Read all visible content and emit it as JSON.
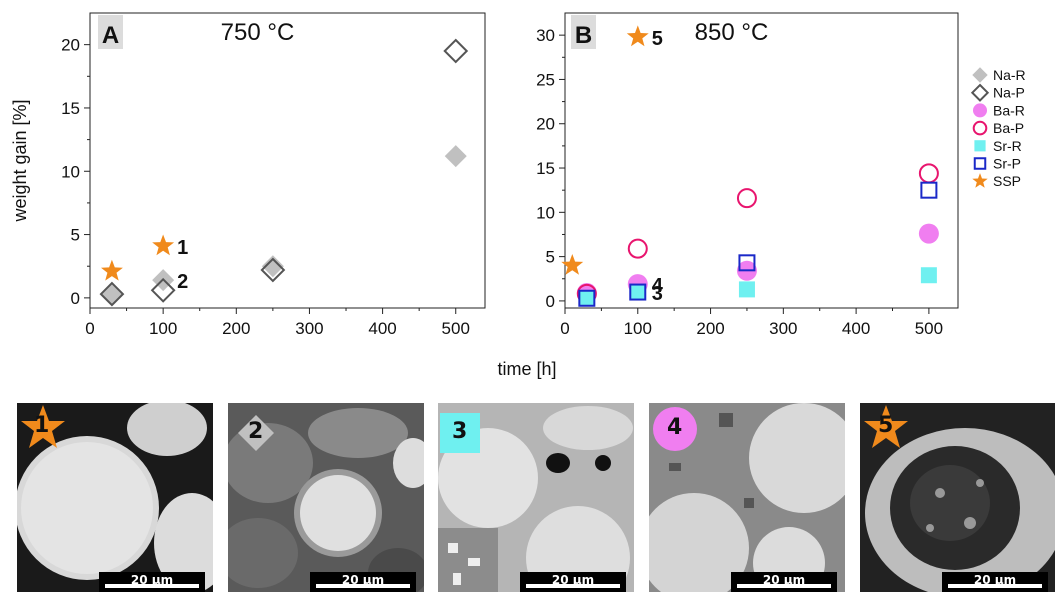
{
  "chart_data": [
    {
      "type": "scatter",
      "panel": "A",
      "title": "750 °C",
      "ylabel": "weight gain [%]",
      "xlim": [
        0,
        540
      ],
      "ylim": [
        -0.8,
        22.5
      ],
      "xticks": [
        0,
        100,
        200,
        300,
        400,
        500
      ],
      "yticks": [
        0,
        5,
        10,
        15,
        20
      ],
      "grid": false,
      "series": [
        {
          "name": "Na-R",
          "marker": "diamond-filled",
          "color": "#c0c0c0",
          "points": [
            [
              30,
              0.3
            ],
            [
              100,
              1.4
            ],
            [
              250,
              2.5
            ],
            [
              500,
              11.2
            ]
          ]
        },
        {
          "name": "Na-P",
          "marker": "diamond-open",
          "color": "#555555",
          "points": [
            [
              30,
              0.3
            ],
            [
              100,
              0.6
            ],
            [
              250,
              2.2
            ],
            [
              500,
              19.5
            ]
          ]
        },
        {
          "name": "SSP",
          "marker": "star",
          "color": "#f08a1c",
          "points": [
            [
              30,
              2.1
            ],
            [
              100,
              4.1
            ]
          ]
        }
      ],
      "annotations": [
        {
          "text": "1",
          "x": 100,
          "y": 4.1
        },
        {
          "text": "2",
          "x": 100,
          "y": 1.4
        }
      ]
    },
    {
      "type": "scatter",
      "panel": "B",
      "title": "850 °C",
      "xlim": [
        0,
        540
      ],
      "ylim": [
        -0.8,
        32.5
      ],
      "xticks": [
        0,
        100,
        200,
        300,
        400,
        500
      ],
      "yticks": [
        0,
        5,
        10,
        15,
        20,
        25,
        30
      ],
      "grid": false,
      "series": [
        {
          "name": "Ba-R",
          "marker": "circle-filled",
          "color": "#f07ef0",
          "points": [
            [
              30,
              0.9
            ],
            [
              100,
              1.9
            ],
            [
              250,
              3.4
            ],
            [
              500,
              7.6
            ]
          ]
        },
        {
          "name": "Ba-P",
          "marker": "circle-open",
          "color": "#e8156e",
          "points": [
            [
              30,
              0.8
            ],
            [
              100,
              5.9
            ],
            [
              250,
              11.6
            ],
            [
              500,
              14.4
            ]
          ]
        },
        {
          "name": "Sr-R",
          "marker": "square-filled",
          "color": "#6ff0f0",
          "points": [
            [
              30,
              0.3
            ],
            [
              100,
              1.0
            ],
            [
              250,
              1.3
            ],
            [
              500,
              2.9
            ]
          ]
        },
        {
          "name": "Sr-P",
          "marker": "square-open",
          "color": "#1a28c8",
          "points": [
            [
              30,
              0.3
            ],
            [
              100,
              1.0
            ],
            [
              250,
              4.3
            ],
            [
              500,
              12.5
            ]
          ]
        },
        {
          "name": "SSP",
          "marker": "star",
          "color": "#f08a1c",
          "points": [
            [
              10,
              4.0
            ],
            [
              100,
              29.8
            ]
          ]
        }
      ],
      "annotations": [
        {
          "text": "3",
          "x": 100,
          "y": 1.0
        },
        {
          "text": "4",
          "x": 100,
          "y": 1.9
        },
        {
          "text": "5",
          "x": 100,
          "y": 29.8
        }
      ]
    }
  ],
  "shared_xlabel": "time [h]",
  "legend": {
    "placement": "right",
    "items": [
      {
        "name": "Na-R",
        "marker": "diamond-filled",
        "color": "#c0c0c0"
      },
      {
        "name": "Na-P",
        "marker": "diamond-open",
        "color": "#555555"
      },
      {
        "name": "Ba-R",
        "marker": "circle-filled",
        "color": "#f07ef0"
      },
      {
        "name": "Ba-P",
        "marker": "circle-open",
        "color": "#e8156e"
      },
      {
        "name": "Sr-R",
        "marker": "square-filled",
        "color": "#6ff0f0"
      },
      {
        "name": "Sr-P",
        "marker": "square-open",
        "color": "#1a28c8"
      },
      {
        "name": "SSP",
        "marker": "star",
        "color": "#f08a1c"
      }
    ]
  },
  "micrographs": [
    {
      "label": "1",
      "badge_marker": "star",
      "badge_color": "#f08a1c",
      "scalebar": "20 µm"
    },
    {
      "label": "2",
      "badge_marker": "diamond-filled",
      "badge_color": "#c0c0c0",
      "scalebar": "20 µm"
    },
    {
      "label": "3",
      "badge_marker": "square-filled",
      "badge_color": "#6ff0f0",
      "scalebar": "20 µm"
    },
    {
      "label": "4",
      "badge_marker": "circle-filled",
      "badge_color": "#f07ef0",
      "scalebar": "20 µm"
    },
    {
      "label": "5",
      "badge_marker": "star",
      "badge_color": "#f08a1c",
      "scalebar": "20 µm"
    }
  ]
}
